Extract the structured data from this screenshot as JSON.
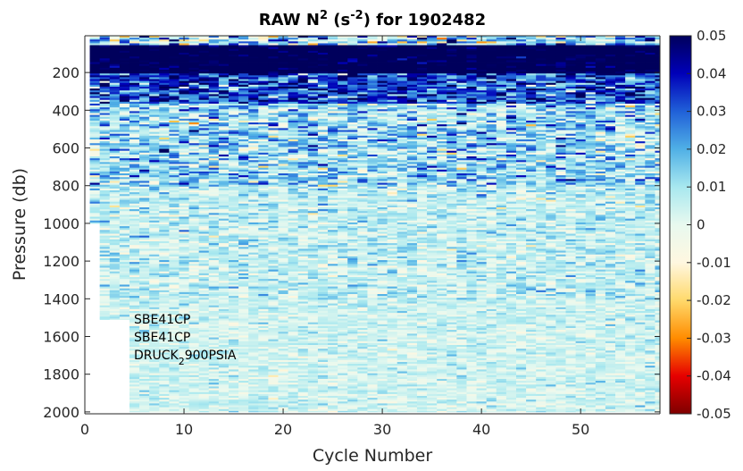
{
  "chart_data": {
    "type": "heatmap",
    "title": {
      "main": "RAW N",
      "sup1": "2",
      "mid": " (s",
      "sup2": "-2",
      "end": ") for 1902482"
    },
    "xlabel": "Cycle Number",
    "ylabel": "Pressure (db)",
    "xlim": [
      0,
      58
    ],
    "ylim": [
      2010,
      5
    ],
    "x_ticks": [
      0,
      10,
      20,
      30,
      40,
      50
    ],
    "x_tick_labels": [
      "0",
      "10",
      "20",
      "30",
      "40",
      "50"
    ],
    "y_ticks": [
      200,
      400,
      600,
      800,
      1000,
      1200,
      1400,
      1600,
      1800,
      2000
    ],
    "y_tick_labels": [
      "200",
      "400",
      "600",
      "800",
      "1000",
      "1200",
      "1400",
      "1600",
      "1800",
      "2000"
    ],
    "colorbar": {
      "clim": [
        -0.05,
        0.05
      ],
      "ticks": [
        0.05,
        0.04,
        0.03,
        0.02,
        0.01,
        0,
        -0.01,
        -0.02,
        -0.03,
        -0.04,
        -0.05
      ],
      "tick_labels": [
        "0.05",
        "0.04",
        "0.03",
        "0.02",
        "0.01",
        "0",
        "-0.01",
        "-0.02",
        "-0.03",
        "-0.04",
        "-0.05"
      ],
      "colormap_stops": [
        "#7f0000",
        "#e60000",
        "#ff8c00",
        "#ffd96b",
        "#fff7e0",
        "#e8f9ef",
        "#a8e8ef",
        "#50b0e6",
        "#2060d8",
        "#0000b8",
        "#00005c"
      ]
    },
    "cycles": [
      1,
      58
    ],
    "data_coverage": [
      {
        "cycle_from": 1,
        "cycle_to": 1,
        "max_pressure": 1000
      },
      {
        "cycle_from": 2,
        "cycle_to": 4,
        "max_pressure": 1510
      },
      {
        "cycle_from": 5,
        "cycle_to": 58,
        "max_pressure": 2000
      }
    ],
    "annotations": [
      {
        "text": "SBE41CP"
      },
      {
        "text": "SBE41CP"
      },
      {
        "main": "DRUCK",
        "sub": "2",
        "rest": "900PSIA"
      }
    ]
  }
}
